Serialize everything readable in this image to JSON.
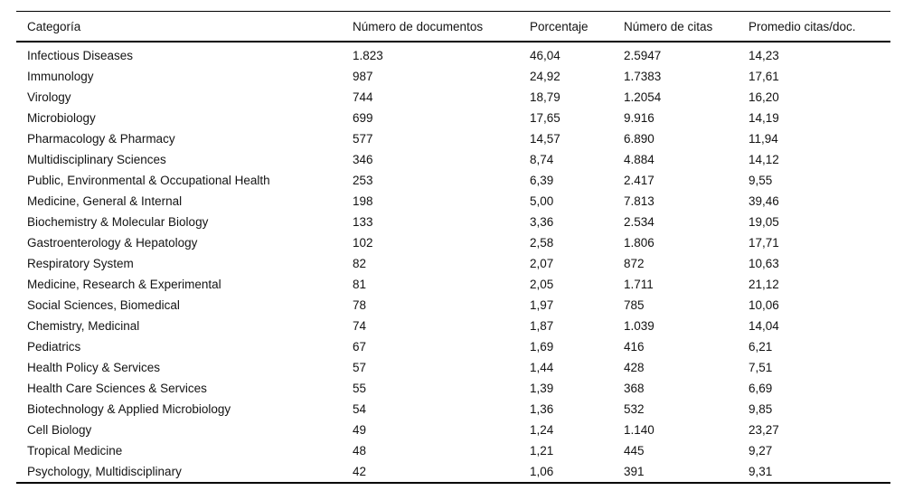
{
  "table": {
    "columns": [
      "Categoría",
      "Número de documentos",
      "Porcentaje",
      "Número de citas",
      "Promedio citas/doc."
    ],
    "rows": [
      [
        "Infectious Diseases",
        "1.823",
        "46,04",
        "2.5947",
        "14,23"
      ],
      [
        "Immunology",
        "987",
        "24,92",
        "1.7383",
        "17,61"
      ],
      [
        "Virology",
        "744",
        "18,79",
        "1.2054",
        "16,20"
      ],
      [
        "Microbiology",
        "699",
        "17,65",
        "9.916",
        "14,19"
      ],
      [
        "Pharmacology & Pharmacy",
        "577",
        "14,57",
        "6.890",
        "11,94"
      ],
      [
        "Multidisciplinary Sciences",
        "346",
        "8,74",
        "4.884",
        "14,12"
      ],
      [
        "Public, Environmental & Occupational Health",
        "253",
        "6,39",
        "2.417",
        "9,55"
      ],
      [
        "Medicine, General & Internal",
        "198",
        "5,00",
        "7.813",
        "39,46"
      ],
      [
        "Biochemistry & Molecular Biology",
        "133",
        "3,36",
        "2.534",
        "19,05"
      ],
      [
        "Gastroenterology & Hepatology",
        "102",
        "2,58",
        "1.806",
        "17,71"
      ],
      [
        "Respiratory System",
        "82",
        "2,07",
        "872",
        "10,63"
      ],
      [
        "Medicine, Research & Experimental",
        "81",
        "2,05",
        "1.711",
        "21,12"
      ],
      [
        "Social Sciences, Biomedical",
        "78",
        "1,97",
        "785",
        "10,06"
      ],
      [
        "Chemistry, Medicinal",
        "74",
        "1,87",
        "1.039",
        "14,04"
      ],
      [
        "Pediatrics",
        "67",
        "1,69",
        "416",
        "6,21"
      ],
      [
        "Health Policy & Services",
        "57",
        "1,44",
        "428",
        "7,51"
      ],
      [
        "Health Care Sciences & Services",
        "55",
        "1,39",
        "368",
        "6,69"
      ],
      [
        "Biotechnology & Applied Microbiology",
        "54",
        "1,36",
        "532",
        "9,85"
      ],
      [
        "Cell Biology",
        "49",
        "1,24",
        "1.140",
        "23,27"
      ],
      [
        "Tropical Medicine",
        "48",
        "1,21",
        "445",
        "9,27"
      ],
      [
        "Psychology, Multidisciplinary",
        "42",
        "1,06",
        "391",
        "9,31"
      ]
    ],
    "colors": {
      "rule": "#000000",
      "text": "#131313",
      "background": "#ffffff"
    }
  }
}
